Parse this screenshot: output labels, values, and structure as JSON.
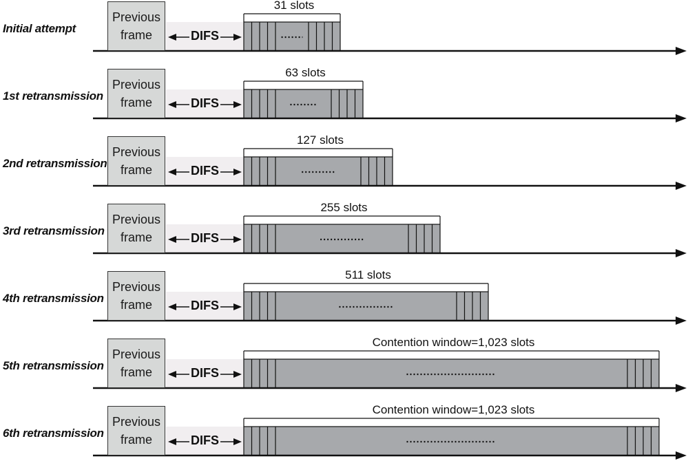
{
  "rows": [
    {
      "label": "Initial attempt",
      "previous_frame": "Previous\nframe",
      "difs": "DIFS",
      "window_label": "31 slots",
      "slots": 31
    },
    {
      "label": "1st retransmission",
      "previous_frame": "Previous\nframe",
      "difs": "DIFS",
      "window_label": "63 slots",
      "slots": 63
    },
    {
      "label": "2nd retransmission",
      "previous_frame": "Previous\nframe",
      "difs": "DIFS",
      "window_label": "127 slots",
      "slots": 127
    },
    {
      "label": "3rd retransmission",
      "previous_frame": "Previous\nframe",
      "difs": "DIFS",
      "window_label": "255 slots",
      "slots": 255
    },
    {
      "label": "4th retransmission",
      "previous_frame": "Previous\nframe",
      "difs": "DIFS",
      "window_label": "511 slots",
      "slots": 511
    },
    {
      "label": "5th retransmission",
      "previous_frame": "Previous\nframe",
      "difs": "DIFS",
      "window_label": "Contention window=1,023 slots",
      "slots": 1023
    },
    {
      "label": "6th retransmission",
      "previous_frame": "Previous\nframe",
      "difs": "DIFS",
      "window_label": "Contention window=1,023 slots",
      "slots": 1023
    }
  ],
  "colors": {
    "frame_fill": "#d6d8d7",
    "window_fill": "#a7a9ac",
    "difs_fill": "#f1eef0",
    "line": "#111111"
  }
}
